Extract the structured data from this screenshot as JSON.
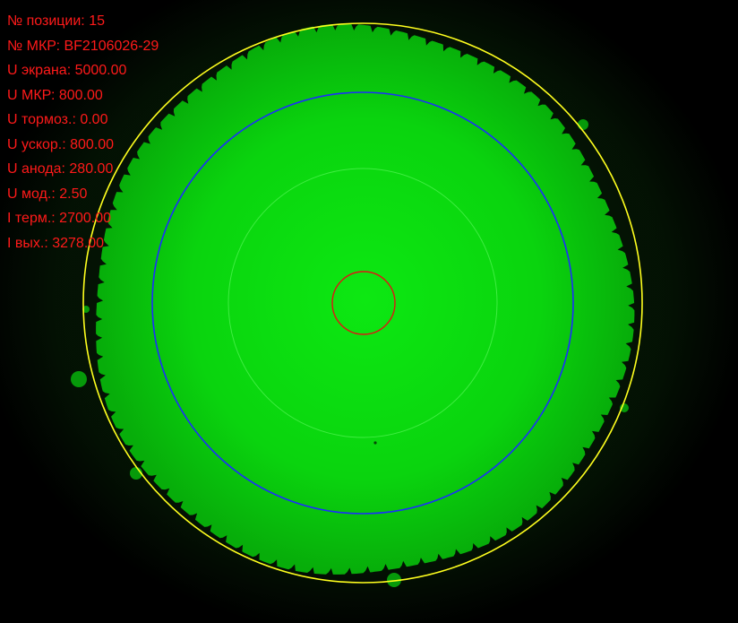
{
  "overlay": {
    "text_color": "#ff1a1a",
    "lines": [
      "№ позиции: 15",
      "№ МКР: BF2106026-29",
      "U экрана: 5000.00",
      "U МКР: 800.00",
      "U тормоз.: 0.00",
      "U ускор.: 800.00",
      "U анода: 280.00",
      "U мод.: 2.50",
      "I терм.: 2700.00",
      "I вых.: 3278.00"
    ]
  },
  "colors": {
    "background": "#000000",
    "phosphor_glow": "#0be40f",
    "phosphor_edge": "#069a0a",
    "outer_ring": "#ffff1e",
    "blue_ring": "#1c2cff",
    "inner_ring": "#6cff6c",
    "center_ring": "#e01414"
  }
}
